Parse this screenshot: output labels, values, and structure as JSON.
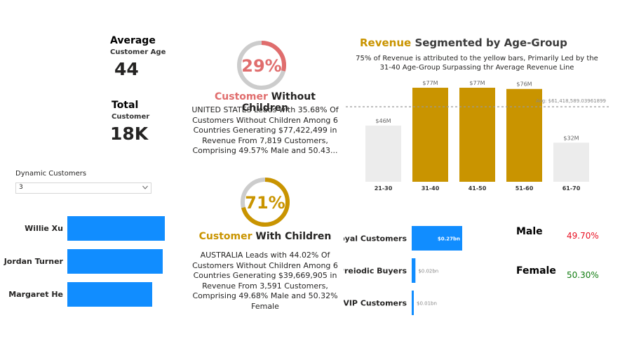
{
  "kpis": {
    "avg_age": {
      "heading": "Average",
      "sub": "Customer Age",
      "value": "44"
    },
    "total": {
      "heading": "Total",
      "sub": "Customer",
      "value": "18K"
    }
  },
  "dropdown": {
    "label": "Dynamic Customers",
    "value": "3"
  },
  "top_customers": {
    "type": "bar",
    "orientation": "horizontal",
    "names": [
      "Willie Xu",
      "Jordan Turner",
      "Margaret He"
    ],
    "values": [
      1.0,
      0.98,
      0.87
    ],
    "color": "#118dff"
  },
  "donut_without": {
    "percent_label": "29%",
    "fraction": 0.29,
    "title_accent": "Customer",
    "title_rest": " Without Children",
    "accent_color": "#e06d6d",
    "body": "UNITED STATES Leads with 35.68% Of Customers Without Children Among 6 Countries Generating $77,422,499 in Revenue From 7,819 Customers, Comprising 49.57% Male and 50.43..."
  },
  "donut_with": {
    "percent_label": "71%",
    "fraction": 0.71,
    "title_accent": "Customer",
    "title_rest": " With Children",
    "accent_color": "#c99400",
    "body": "AUSTRALIA Leads with 44.02% Of Customers Without Children Among 6 Countries Generating $39,669,905 in Revenue From 3,591 Customers, Comprising 49.68% Male and 50.32% Female"
  },
  "chart_data": [
    {
      "type": "bar",
      "title_accent": "Revenue",
      "title_rest": " Segmented by Age-Group",
      "subtitle": "75% of Revenue is attributed to the yellow bars, Primarily Led by the 31-40 Age-Group Surpassing thr Average Revenue Line",
      "categories": [
        "21-30",
        "31-40",
        "41-50",
        "51-60",
        "61-70"
      ],
      "values": [
        46,
        77,
        77,
        76,
        32
      ],
      "data_labels": [
        "$46M",
        "$77M",
        "$77M",
        "$76M",
        "$32M"
      ],
      "highlighted": [
        false,
        true,
        true,
        true,
        false
      ],
      "colors": {
        "highlight": "#c99400",
        "base": "#ececec",
        "accent_title": "#c99400"
      },
      "reference_line": {
        "value": 61.418589,
        "label": "Avg: $61,418,589.03961899"
      },
      "ylim": [
        0,
        77
      ]
    },
    {
      "type": "bar",
      "orientation": "horizontal",
      "categories": [
        "Loyal Customers",
        "Preiodic Buyers",
        "VIP Customers"
      ],
      "values": [
        0.27,
        0.02,
        0.01
      ],
      "data_labels": [
        "$0.27bn",
        "$0.02bn",
        "$0.01bn"
      ],
      "color": "#118dff",
      "xlim": [
        0,
        0.27
      ]
    }
  ],
  "gender": {
    "male": {
      "label": "Male",
      "value": "49.70%",
      "color": "#e81123"
    },
    "female": {
      "label": "Female",
      "value": "50.30%",
      "color": "#107c10"
    }
  }
}
